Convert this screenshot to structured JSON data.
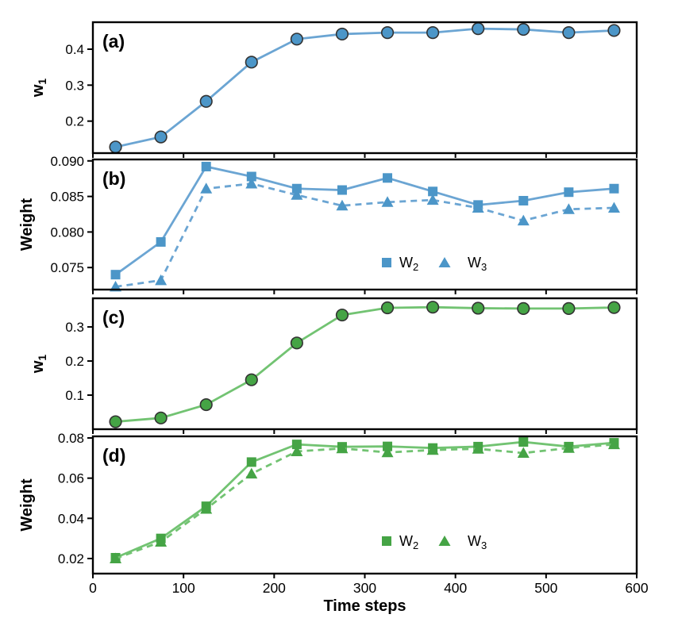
{
  "figure": {
    "background": "#ffffff",
    "xlabel": "Time steps",
    "x_tick_values": [
      0,
      100,
      200,
      300,
      400,
      500,
      600
    ],
    "x_tick_labels": [
      "0",
      "100",
      "200",
      "300",
      "400",
      "500",
      "600"
    ],
    "xlim": [
      0,
      600
    ],
    "x": [
      25,
      75,
      125,
      175,
      225,
      275,
      325,
      375,
      425,
      475,
      525,
      575
    ],
    "colors": {
      "blue_line": "#6BA5D3",
      "blue_marker": "#4C96C8",
      "green_line": "#72C372",
      "green_marker": "#45A445",
      "marker_edge": "#333333",
      "frame": "#000000",
      "text": "#000000"
    },
    "legend_items": [
      {
        "label_base": "W",
        "label_sub": "2",
        "marker": "square"
      },
      {
        "label_base": "W",
        "label_sub": "3",
        "marker": "triangle"
      }
    ]
  },
  "chart_data": [
    {
      "type": "line",
      "panel": "a",
      "panel_label": "(a)",
      "ylabel_base": "w",
      "ylabel_sub": "1",
      "color_scheme": "blue",
      "ylim": [
        0.111,
        0.475
      ],
      "ytick_values": [
        0.2,
        0.3,
        0.4
      ],
      "ytick_labels": [
        "0.2",
        "0.3",
        "0.4"
      ],
      "grid": false,
      "legend": false,
      "series": [
        {
          "name_base": "w",
          "name_sub": "1",
          "marker": "circle",
          "line_style": "solid",
          "values": [
            0.128,
            0.156,
            0.255,
            0.364,
            0.428,
            0.442,
            0.446,
            0.446,
            0.457,
            0.455,
            0.446,
            0.452
          ]
        }
      ]
    },
    {
      "type": "line",
      "panel": "b",
      "panel_label": "(b)",
      "ylabel_base": "Weight",
      "ylabel_sub": "",
      "color_scheme": "blue",
      "ylim": [
        0.0719,
        0.0902
      ],
      "ytick_values": [
        0.075,
        0.08,
        0.085,
        0.09
      ],
      "ytick_labels": [
        "0.075",
        "0.080",
        "0.085",
        "0.090"
      ],
      "grid": false,
      "legend": true,
      "series": [
        {
          "name_base": "W",
          "name_sub": "2",
          "marker": "square",
          "line_style": "solid",
          "values": [
            0.074,
            0.0786,
            0.0892,
            0.0878,
            0.0861,
            0.0859,
            0.0876,
            0.0857,
            0.0838,
            0.0844,
            0.0856,
            0.0861
          ]
        },
        {
          "name_base": "W",
          "name_sub": "3",
          "marker": "triangle",
          "line_style": "dashed",
          "values": [
            0.0723,
            0.0732,
            0.0861,
            0.0868,
            0.0852,
            0.0837,
            0.0842,
            0.0845,
            0.0834,
            0.0816,
            0.0832,
            0.0834
          ]
        }
      ]
    },
    {
      "type": "line",
      "panel": "c",
      "panel_label": "(c)",
      "ylabel_base": "w",
      "ylabel_sub": "1",
      "color_scheme": "green",
      "ylim": [
        0.0,
        0.384
      ],
      "ytick_values": [
        0.1,
        0.2,
        0.3
      ],
      "ytick_labels": [
        "0.1",
        "0.2",
        "0.3"
      ],
      "grid": false,
      "legend": false,
      "series": [
        {
          "name_base": "w",
          "name_sub": "1",
          "marker": "circle",
          "line_style": "solid",
          "values": [
            0.022,
            0.033,
            0.072,
            0.145,
            0.253,
            0.335,
            0.356,
            0.358,
            0.355,
            0.354,
            0.354,
            0.357
          ]
        }
      ]
    },
    {
      "type": "line",
      "panel": "d",
      "panel_label": "(d)",
      "ylabel_base": "Weight",
      "ylabel_sub": "",
      "color_scheme": "green",
      "ylim": [
        0.0125,
        0.0808
      ],
      "ytick_values": [
        0.02,
        0.04,
        0.06,
        0.08
      ],
      "ytick_labels": [
        "0.02",
        "0.04",
        "0.06",
        "0.08"
      ],
      "grid": false,
      "legend": true,
      "series": [
        {
          "name_base": "W",
          "name_sub": "2",
          "marker": "square",
          "line_style": "solid",
          "values": [
            0.0204,
            0.03,
            0.046,
            0.068,
            0.0768,
            0.0756,
            0.0758,
            0.075,
            0.0757,
            0.078,
            0.0757,
            0.0776
          ]
        },
        {
          "name_base": "W",
          "name_sub": "3",
          "marker": "triangle",
          "line_style": "dashed",
          "values": [
            0.02,
            0.0283,
            0.0447,
            0.0622,
            0.0733,
            0.0748,
            0.0728,
            0.074,
            0.0746,
            0.0725,
            0.075,
            0.0768
          ]
        }
      ]
    }
  ]
}
